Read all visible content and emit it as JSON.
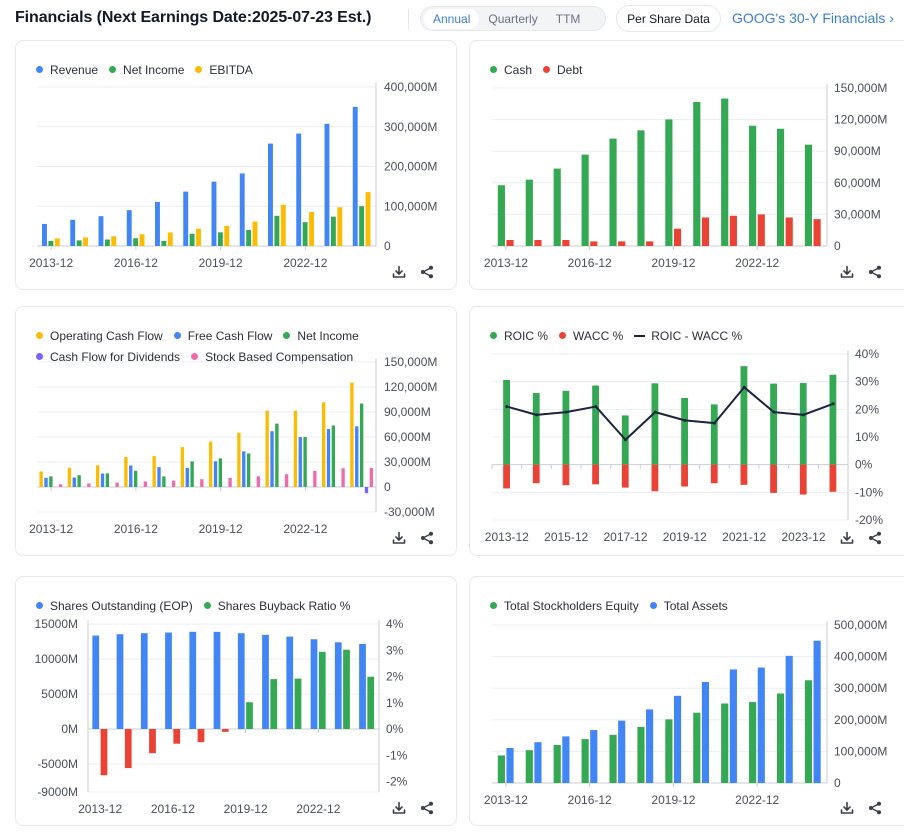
{
  "header": {
    "title": "Financials (Next Earnings Date:2025-07-23 Est.)",
    "period_tabs": [
      {
        "label": "Annual",
        "active": true
      },
      {
        "label": "Quarterly",
        "active": false
      },
      {
        "label": "TTM",
        "active": false
      }
    ],
    "per_share_button": "Per Share Data",
    "link": "GOOG's 30-Y Financials  ›",
    "accent_color": "#3b7ddd"
  },
  "colors": {
    "blue": "#4285f4",
    "green": "#34a853",
    "yellow": "#fbbc04",
    "red": "#ea4335",
    "purple": "#7b61ff",
    "pink": "#f06bae",
    "navy": "#1b2340"
  },
  "card_tools": {
    "download_icon": "download-icon",
    "share_icon": "share-icon"
  },
  "chart_data": [
    {
      "id": "revenue",
      "type": "bar",
      "title": "",
      "categories": [
        "2013-12",
        "2014-12",
        "2015-12",
        "2016-12",
        "2017-12",
        "2018-12",
        "2019-12",
        "2020-12",
        "2021-12",
        "2022-12",
        "2023-12",
        "2024-12"
      ],
      "x_tick_labels": [
        "2013-12",
        "2016-12",
        "2019-12",
        "2022-12"
      ],
      "series": [
        {
          "name": "Revenue",
          "color": "#4285f4",
          "values": [
            55519,
            66001,
            74989,
            90272,
            110855,
            136819,
            161857,
            182527,
            257637,
            282836,
            307394,
            350018
          ]
        },
        {
          "name": "Net Income",
          "color": "#34a853",
          "values": [
            12733,
            14136,
            16348,
            19478,
            12662,
            30736,
            34343,
            40269,
            76033,
            59972,
            73795,
            100118
          ]
        },
        {
          "name": "EBITDA",
          "color": "#fbbc04",
          "values": [
            19000,
            21500,
            24500,
            29500,
            34000,
            43500,
            50500,
            61500,
            103500,
            85500,
            97500,
            135500
          ]
        }
      ],
      "ylim": [
        0,
        400000
      ],
      "y_ticks": [
        "400,000M",
        "300,000M",
        "200,000M",
        "100,000M",
        "0"
      ],
      "y_tick_values": [
        400000,
        300000,
        200000,
        100000,
        0
      ],
      "units": "M",
      "grid": true,
      "legend": "top-left"
    },
    {
      "id": "cash-debt",
      "type": "bar",
      "title": "",
      "categories": [
        "2013-12",
        "2014-12",
        "2015-12",
        "2016-12",
        "2017-12",
        "2018-12",
        "2019-12",
        "2020-12",
        "2021-12",
        "2022-12",
        "2023-12",
        "2024-12"
      ],
      "x_tick_labels": [
        "2013-12",
        "2016-12",
        "2019-12",
        "2022-12"
      ],
      "series": [
        {
          "name": "Cash",
          "color": "#34a853",
          "values": [
            57700,
            63000,
            73500,
            86800,
            102000,
            109800,
            120200,
            136700,
            140000,
            114200,
            111300,
            96200
          ]
        },
        {
          "name": "Debt",
          "color": "#ea4335",
          "values": [
            5700,
            5700,
            5700,
            4400,
            4400,
            4400,
            16400,
            27100,
            28700,
            30000,
            27100,
            25500
          ]
        }
      ],
      "ylim": [
        0,
        150000
      ],
      "y_ticks": [
        "150,000M",
        "120,000M",
        "90,000M",
        "60,000M",
        "30,000M",
        "0"
      ],
      "y_tick_values": [
        150000,
        120000,
        90000,
        60000,
        30000,
        0
      ],
      "units": "M",
      "grid": true,
      "legend": "top-left"
    },
    {
      "id": "cash-flow",
      "type": "bar",
      "title": "",
      "categories": [
        "2013-12",
        "2014-12",
        "2015-12",
        "2016-12",
        "2017-12",
        "2018-12",
        "2019-12",
        "2020-12",
        "2021-12",
        "2022-12",
        "2023-12",
        "2024-12"
      ],
      "x_tick_labels": [
        "2013-12",
        "2016-12",
        "2019-12",
        "2022-12"
      ],
      "series": [
        {
          "name": "Operating Cash Flow",
          "color": "#fbbc04",
          "values": [
            18700,
            23000,
            26000,
            36000,
            37100,
            48000,
            54500,
            65100,
            91700,
            91500,
            101700,
            125300
          ]
        },
        {
          "name": "Free Cash Flow",
          "color": "#4285f4",
          "values": [
            11000,
            11400,
            16100,
            25800,
            23900,
            22800,
            30900,
            42800,
            67000,
            60000,
            69500,
            72800
          ]
        },
        {
          "name": "Net Income",
          "color": "#34a853",
          "values": [
            12733,
            14136,
            16348,
            19478,
            12662,
            30736,
            34343,
            40269,
            76033,
            59972,
            73795,
            100118
          ]
        },
        {
          "name": "Cash Flow for Dividends",
          "color": "#7b61ff",
          "values": [
            0,
            0,
            0,
            0,
            0,
            0,
            0,
            0,
            0,
            0,
            0,
            -7400
          ]
        },
        {
          "name": "Stock Based Compensation",
          "color": "#f06bae",
          "values": [
            3300,
            4200,
            5200,
            6700,
            7700,
            9400,
            10800,
            12900,
            15400,
            19400,
            22500,
            22800
          ]
        }
      ],
      "ylim": [
        -30000,
        150000
      ],
      "y_ticks": [
        "150,000M",
        "120,000M",
        "90,000M",
        "60,000M",
        "30,000M",
        "0",
        "-30,000M"
      ],
      "y_tick_values": [
        150000,
        120000,
        90000,
        60000,
        30000,
        0,
        -30000
      ],
      "units": "M",
      "grid": true,
      "legend": "top-left"
    },
    {
      "id": "roic-wacc",
      "type": "bar",
      "title": "",
      "categories": [
        "2013-12",
        "2014-12",
        "2015-12",
        "2016-12",
        "2017-12",
        "2018-12",
        "2019-12",
        "2020-12",
        "2021-12",
        "2022-12",
        "2023-12",
        "2024-12"
      ],
      "x_tick_labels": [
        "2013-12",
        "2015-12",
        "2017-12",
        "2019-12",
        "2021-12",
        "2023-12"
      ],
      "series": [
        {
          "name": "ROIC %",
          "color": "#34a853",
          "kind": "bar",
          "values": [
            30.6,
            25.9,
            26.7,
            28.6,
            17.8,
            29.4,
            24.1,
            21.8,
            35.6,
            29.3,
            29.5,
            32.5
          ]
        },
        {
          "name": "WACC %",
          "color": "#ea4335",
          "kind": "bar",
          "values": [
            -8.6,
            -6.7,
            -7.4,
            -7.1,
            -8.3,
            -9.6,
            -7.9,
            -6.7,
            -7.3,
            -10.2,
            -10.8,
            -9.8
          ]
        },
        {
          "name": "ROIC - WACC %",
          "color": "#1b2340",
          "kind": "line",
          "values": [
            21,
            18,
            19,
            21,
            9,
            19,
            16,
            15,
            28,
            19,
            18,
            22
          ]
        }
      ],
      "ylim": [
        -20,
        40
      ],
      "y_ticks": [
        "40%",
        "30%",
        "20%",
        "10%",
        "0%",
        "-10%",
        "-20%"
      ],
      "y_tick_values": [
        40,
        30,
        20,
        10,
        0,
        -10,
        -20
      ],
      "units": "%",
      "grid": true,
      "legend": "top-left"
    },
    {
      "id": "shares",
      "type": "bar",
      "title": "",
      "categories": [
        "2013-12",
        "2014-12",
        "2015-12",
        "2016-12",
        "2017-12",
        "2018-12",
        "2019-12",
        "2020-12",
        "2021-12",
        "2022-12",
        "2023-12",
        "2024-12"
      ],
      "x_tick_labels": [
        "2013-12",
        "2016-12",
        "2019-12",
        "2022-12"
      ],
      "series": [
        {
          "name": "Shares Outstanding (EOP)",
          "color": "#4285f4",
          "axis": "left",
          "values": [
            13350,
            13540,
            13690,
            13780,
            13880,
            13880,
            13690,
            13450,
            13200,
            12820,
            12390,
            12150
          ]
        },
        {
          "name": "Shares Buyback Ratio %",
          "color": "#34a853",
          "negative_color": "#ea4335",
          "axis": "right",
          "values": [
            -1.76,
            -1.49,
            -0.92,
            -0.56,
            -0.5,
            -0.11,
            1.02,
            1.9,
            1.92,
            2.94,
            3.02,
            1.99
          ]
        }
      ],
      "ylim_left": [
        -9000,
        15000
      ],
      "ylim_right": [
        -2.4,
        4
      ],
      "y_ticks_left": [
        "15000M",
        "10000M",
        "5000M",
        "0M",
        "-5000M",
        "-9000M"
      ],
      "y_tick_values_left": [
        15000,
        10000,
        5000,
        0,
        -5000,
        -9000
      ],
      "y_ticks_right": [
        "4%",
        "3%",
        "2%",
        "1%",
        "0%",
        "-1%",
        "-2%"
      ],
      "y_tick_values_right": [
        4,
        3,
        2,
        1,
        0,
        -1,
        -2
      ],
      "grid": true,
      "legend": "top-left"
    },
    {
      "id": "equity-assets",
      "type": "bar",
      "title": "",
      "categories": [
        "2013-12",
        "2014-12",
        "2015-12",
        "2016-12",
        "2017-12",
        "2018-12",
        "2019-12",
        "2020-12",
        "2021-12",
        "2022-12",
        "2023-12",
        "2024-12"
      ],
      "x_tick_labels": [
        "2013-12",
        "2016-12",
        "2019-12",
        "2022-12"
      ],
      "series": [
        {
          "name": "Total Stockholders Equity",
          "color": "#34a853",
          "values": [
            87300,
            103900,
            120300,
            139000,
            152500,
            177600,
            201400,
            222500,
            251600,
            256100,
            283400,
            325100
          ]
        },
        {
          "name": "Total Assets",
          "color": "#4285f4",
          "values": [
            110900,
            129200,
            147500,
            167500,
            197300,
            232800,
            275900,
            319600,
            359300,
            365300,
            402400,
            450300
          ]
        }
      ],
      "ylim": [
        0,
        500000
      ],
      "y_ticks": [
        "500,000M",
        "400,000M",
        "300,000M",
        "200,000M",
        "100,000M",
        "0"
      ],
      "y_tick_values": [
        500000,
        400000,
        300000,
        200000,
        100000,
        0
      ],
      "units": "M",
      "grid": true,
      "legend": "top-left"
    }
  ]
}
